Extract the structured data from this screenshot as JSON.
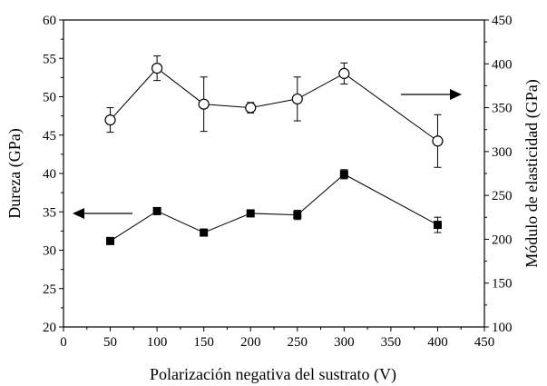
{
  "chart_data": {
    "type": "scatter",
    "xlabel": "Polarización negativa del sustrato (V)",
    "ylabel_left": "Dureza  (GPa)",
    "ylabel_right": "Módulo de elasticidad  (GPa)",
    "xlim": [
      0,
      450
    ],
    "ylim_left": [
      20,
      60
    ],
    "ylim_right": [
      100,
      450
    ],
    "x_ticks": [
      0,
      50,
      100,
      150,
      200,
      250,
      300,
      350,
      400,
      450
    ],
    "y_ticks_left": [
      20,
      25,
      30,
      35,
      40,
      45,
      50,
      55,
      60
    ],
    "y_ticks_right": [
      100,
      150,
      200,
      250,
      300,
      350,
      400,
      450
    ],
    "grid": false,
    "series": [
      {
        "axis": "right",
        "marker": "open-circle",
        "x": [
          50,
          100,
          150,
          200,
          250,
          300,
          400
        ],
        "y": [
          336,
          395,
          354,
          350,
          360,
          389,
          312
        ],
        "err": [
          14,
          14,
          31,
          6,
          25,
          12,
          30
        ]
      },
      {
        "axis": "left",
        "marker": "filled-square",
        "x": [
          50,
          100,
          150,
          200,
          250,
          300,
          400
        ],
        "y": [
          31.2,
          35.1,
          32.3,
          34.8,
          34.6,
          39.9,
          33.3
        ],
        "err": [
          0,
          0.3,
          0.3,
          0.3,
          0.6,
          0.6,
          1.0
        ]
      }
    ],
    "annotations": [
      {
        "type": "arrow",
        "direction": "left",
        "points_to_axis": "left"
      },
      {
        "type": "arrow",
        "direction": "right",
        "points_to_axis": "right"
      }
    ]
  }
}
